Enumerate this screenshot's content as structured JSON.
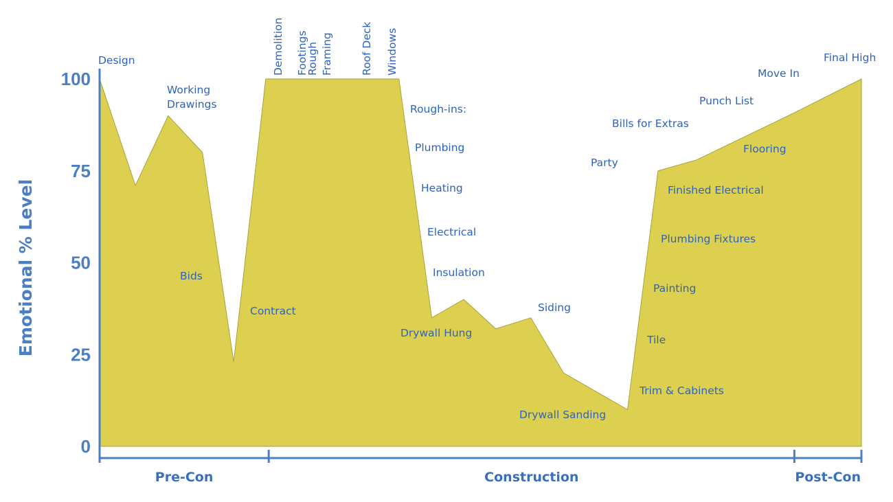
{
  "chart_data": {
    "type": "area",
    "title": "",
    "xlabel": "",
    "ylabel": "Emotional % Level",
    "ylim": [
      0,
      100
    ],
    "yticks": [
      0,
      25,
      50,
      75,
      100
    ],
    "series": [
      {
        "values": [
          {
            "x": 0.0,
            "y": 100
          },
          {
            "x": 0.047,
            "y": 71
          },
          {
            "x": 0.09,
            "y": 90
          },
          {
            "x": 0.135,
            "y": 80
          },
          {
            "x": 0.176,
            "y": 23
          },
          {
            "x": 0.218,
            "y": 100
          },
          {
            "x": 0.393,
            "y": 100
          },
          {
            "x": 0.436,
            "y": 35
          },
          {
            "x": 0.478,
            "y": 40
          },
          {
            "x": 0.52,
            "y": 32
          },
          {
            "x": 0.566,
            "y": 35
          },
          {
            "x": 0.609,
            "y": 20
          },
          {
            "x": 0.693,
            "y": 10
          },
          {
            "x": 0.733,
            "y": 75
          },
          {
            "x": 0.784,
            "y": 78
          },
          {
            "x": 0.914,
            "y": 91
          },
          {
            "x": 1.0,
            "y": 100
          }
        ]
      }
    ],
    "phases": [
      {
        "name": "Pre-Con",
        "from": 0.0,
        "to": 0.222
      },
      {
        "name": "Construction",
        "from": 0.222,
        "to": 0.912
      },
      {
        "name": "Post-Con",
        "from": 0.912,
        "to": 1.0
      }
    ],
    "annotations": [
      {
        "id": "design",
        "lines": [
          "Design"
        ]
      },
      {
        "id": "working-drawings",
        "lines": [
          "Working",
          "Drawings"
        ]
      },
      {
        "id": "bids",
        "lines": [
          "Bids"
        ]
      },
      {
        "id": "contract",
        "lines": [
          "Contract"
        ]
      },
      {
        "id": "demolition",
        "lines": [
          "Demolition"
        ],
        "vertical": true
      },
      {
        "id": "footings",
        "lines": [
          "Footings"
        ],
        "vertical": true
      },
      {
        "id": "rough-framing",
        "lines": [
          "Rough",
          "Framing"
        ],
        "vertical": true
      },
      {
        "id": "roof-deck",
        "lines": [
          "Roof Deck"
        ],
        "vertical": true
      },
      {
        "id": "windows",
        "lines": [
          "Windows"
        ],
        "vertical": true
      },
      {
        "id": "rough-ins",
        "lines": [
          "Rough-ins:"
        ]
      },
      {
        "id": "plumbing",
        "lines": [
          "Plumbing"
        ]
      },
      {
        "id": "heating",
        "lines": [
          "Heating"
        ]
      },
      {
        "id": "electrical",
        "lines": [
          "Electrical"
        ]
      },
      {
        "id": "insulation",
        "lines": [
          "Insulation"
        ]
      },
      {
        "id": "drywall-hung",
        "lines": [
          "Drywall Hung"
        ]
      },
      {
        "id": "siding",
        "lines": [
          "Siding"
        ]
      },
      {
        "id": "drywall-sanding",
        "lines": [
          "Drywall Sanding"
        ]
      },
      {
        "id": "party",
        "lines": [
          "Party"
        ]
      },
      {
        "id": "bills-for-extras",
        "lines": [
          "Bills for Extras"
        ]
      },
      {
        "id": "punch-list",
        "lines": [
          "Punch List"
        ]
      },
      {
        "id": "move-in",
        "lines": [
          "Move In"
        ]
      },
      {
        "id": "final-high",
        "lines": [
          "Final High"
        ]
      },
      {
        "id": "flooring",
        "lines": [
          "Flooring"
        ]
      },
      {
        "id": "finished-electrical",
        "lines": [
          "Finished Electrical"
        ]
      },
      {
        "id": "plumbing-fixtures",
        "lines": [
          "Plumbing Fixtures"
        ]
      },
      {
        "id": "painting",
        "lines": [
          "Painting"
        ]
      },
      {
        "id": "tile",
        "lines": [
          "Tile"
        ]
      },
      {
        "id": "trim-cabinets",
        "lines": [
          "Trim & Cabinets"
        ]
      }
    ],
    "colors": {
      "fill": "#ddd050",
      "axis": "#4a7fc4",
      "text": "#2f63b8"
    },
    "grid": false,
    "legend": "none"
  }
}
